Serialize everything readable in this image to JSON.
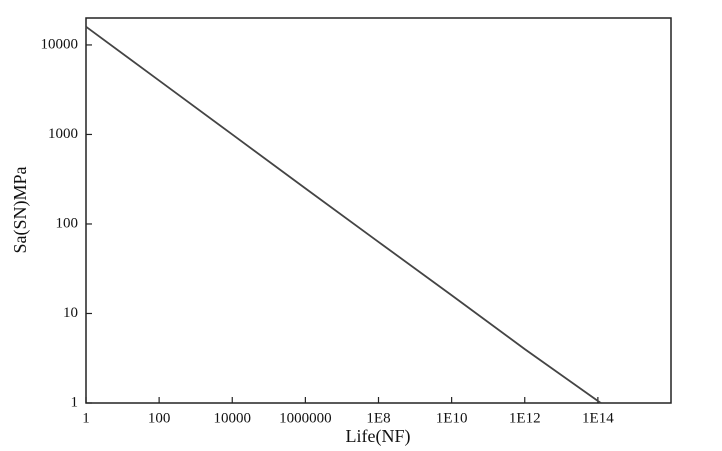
{
  "chart_data": {
    "type": "line",
    "x_label": "Life(NF)",
    "y_label": "Sa(SN)MPa",
    "x": [
      1,
      100,
      10000,
      1000000,
      100000000,
      10000000000,
      1000000000000,
      120000000000000
    ],
    "values": [
      16000,
      4000,
      1000,
      250,
      63,
      16,
      4,
      1
    ],
    "color": "#444444",
    "log_x": true,
    "log_y": true,
    "xlim": [
      1,
      10000000000000000
    ],
    "ylim": [
      1,
      20000
    ],
    "xticks": [
      1,
      100,
      10000,
      1000000,
      {
        "value": 100000000,
        "label": "1E8"
      },
      {
        "value": 10000000000,
        "label": "1E10"
      },
      {
        "value": 1000000000000,
        "label": "1E12"
      },
      {
        "value": 100000000000000,
        "label": "1E14"
      }
    ],
    "yticks": [
      1,
      10,
      100,
      1000,
      10000
    ],
    "grid": false
  }
}
